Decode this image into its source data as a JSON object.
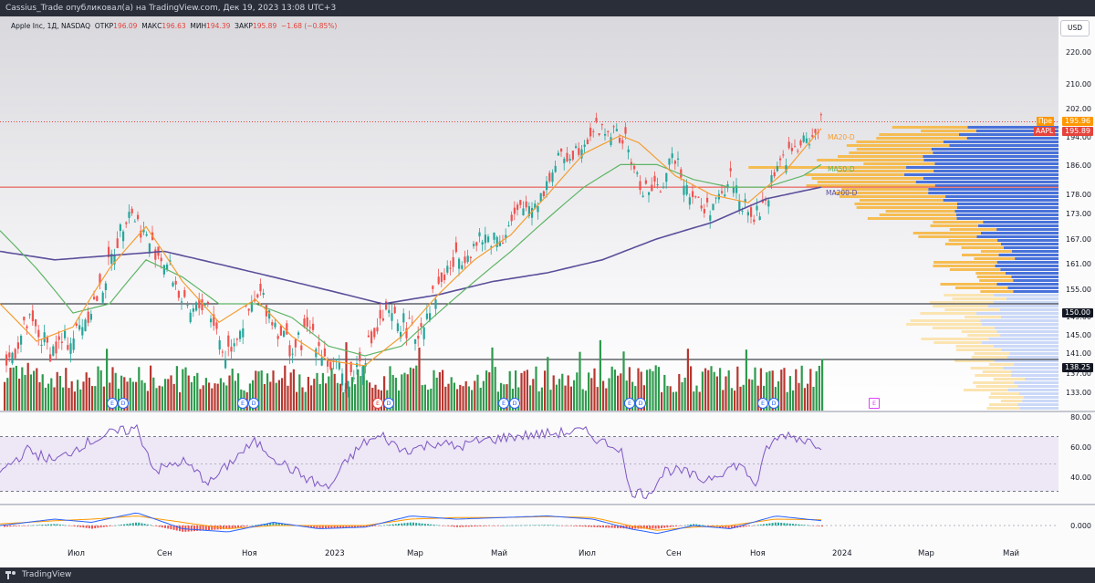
{
  "header": {
    "title": "Cassius_Trade опубликовал(а) на TradingView.com, Дек 19, 2023 13:08 UTC+3"
  },
  "legend": {
    "symbol": "Apple Inc, 1Д, NASDAQ",
    "open_label": "ОТКР",
    "open_value": "196.09",
    "high_label": "МАКС",
    "high_value": "196.63",
    "low_label": "МИН",
    "low_value": "194.39",
    "close_label": "ЗАКР",
    "close_value": "195.89",
    "change": "−1.68 (−0.85%)"
  },
  "currency_button": "USD",
  "price_axis": {
    "main_ticks": [
      "220.00",
      "210.00",
      "202.00",
      "194.00",
      "186.00",
      "178.00",
      "173.00",
      "167.00",
      "161.00",
      "155.00",
      "149.00",
      "145.00",
      "141.00",
      "137.00",
      "133.00"
    ],
    "rsi_ticks": [
      "80.00",
      "60.00",
      "40.00"
    ],
    "macd_ticks": [
      "0.000"
    ]
  },
  "price_tags": {
    "pre_label": "Пре",
    "pre": "195.96",
    "last_label": "AAPL",
    "last": "195.89",
    "level_150": "150.00",
    "level_138": "138.25"
  },
  "ma_labels": {
    "ma20": "MA20-D",
    "ma50": "MA50-D",
    "ma200": "MA200-D"
  },
  "time_axis": [
    "Июл",
    "Сен",
    "Ноя",
    "2023",
    "Мар",
    "Май",
    "Июл",
    "Сен",
    "Ноя",
    "2024",
    "Мар",
    "Май"
  ],
  "earnings_markers": [
    "E",
    "D",
    "E",
    "D",
    "E",
    "D",
    "E",
    "D",
    "E",
    "D",
    "E",
    "D",
    "E"
  ],
  "footer": {
    "brand": "TradingView"
  },
  "colors": {
    "up": "#26a69a",
    "down": "#ef5350",
    "vol_up": "#2e9a4d",
    "vol_down": "#b7372f",
    "ma20": "#f59d31",
    "ma50": "#5fb566",
    "ma200": "#5b4f9a",
    "rsi": "#7e57c2",
    "vp_up": "#f5b94a",
    "vp_down": "#3f6ad8"
  },
  "chart_data": {
    "type": "candlestick",
    "symbol": "AAPL",
    "timeframe": "1D",
    "close_path": [
      [
        0,
        135
      ],
      [
        30,
        146
      ],
      [
        55,
        140
      ],
      [
        80,
        143
      ],
      [
        110,
        153
      ],
      [
        140,
        173
      ],
      [
        160,
        165
      ],
      [
        185,
        158
      ],
      [
        205,
        147
      ],
      [
        225,
        151
      ],
      [
        245,
        139
      ],
      [
        265,
        146
      ],
      [
        285,
        152
      ],
      [
        300,
        146
      ],
      [
        320,
        140
      ],
      [
        340,
        145
      ],
      [
        360,
        137
      ],
      [
        380,
        134
      ],
      [
        400,
        140
      ],
      [
        420,
        147
      ],
      [
        440,
        146
      ],
      [
        455,
        143
      ],
      [
        470,
        150
      ],
      [
        490,
        158
      ],
      [
        510,
        162
      ],
      [
        530,
        165
      ],
      [
        550,
        166
      ],
      [
        570,
        172
      ],
      [
        590,
        175
      ],
      [
        610,
        185
      ],
      [
        630,
        188
      ],
      [
        650,
        194
      ],
      [
        670,
        193
      ],
      [
        685,
        190
      ],
      [
        700,
        178
      ],
      [
        720,
        177
      ],
      [
        740,
        187
      ],
      [
        750,
        179
      ],
      [
        770,
        172
      ],
      [
        790,
        175
      ],
      [
        800,
        181
      ],
      [
        820,
        170
      ],
      [
        835,
        172
      ],
      [
        850,
        184
      ],
      [
        870,
        188
      ],
      [
        890,
        192
      ],
      [
        900,
        195.9
      ]
    ],
    "ma20_path": [
      [
        0,
        150
      ],
      [
        40,
        142
      ],
      [
        80,
        145
      ],
      [
        120,
        158
      ],
      [
        160,
        168
      ],
      [
        200,
        155
      ],
      [
        240,
        146
      ],
      [
        280,
        151
      ],
      [
        320,
        143
      ],
      [
        360,
        138
      ],
      [
        400,
        137
      ],
      [
        440,
        143
      ],
      [
        480,
        152
      ],
      [
        520,
        160
      ],
      [
        560,
        166
      ],
      [
        600,
        176
      ],
      [
        640,
        187
      ],
      [
        680,
        192
      ],
      [
        700,
        190
      ],
      [
        740,
        181
      ],
      [
        780,
        176
      ],
      [
        820,
        174
      ],
      [
        860,
        182
      ],
      [
        900,
        194
      ]
    ],
    "ma50_path": [
      [
        0,
        167
      ],
      [
        40,
        158
      ],
      [
        80,
        148
      ],
      [
        120,
        150
      ],
      [
        160,
        160
      ],
      [
        200,
        156
      ],
      [
        240,
        150
      ],
      [
        280,
        150
      ],
      [
        320,
        147
      ],
      [
        360,
        141
      ],
      [
        400,
        139
      ],
      [
        440,
        141
      ],
      [
        480,
        148
      ],
      [
        520,
        155
      ],
      [
        560,
        162
      ],
      [
        600,
        170
      ],
      [
        640,
        178
      ],
      [
        680,
        184
      ],
      [
        720,
        184
      ],
      [
        760,
        180
      ],
      [
        800,
        178
      ],
      [
        840,
        178
      ],
      [
        880,
        181
      ],
      [
        900,
        184
      ]
    ],
    "ma200_path": [
      [
        0,
        162
      ],
      [
        60,
        160
      ],
      [
        120,
        161
      ],
      [
        180,
        162
      ],
      [
        240,
        159
      ],
      [
        300,
        156
      ],
      [
        360,
        153
      ],
      [
        420,
        150
      ],
      [
        480,
        152
      ],
      [
        540,
        155
      ],
      [
        600,
        157
      ],
      [
        660,
        160
      ],
      [
        720,
        165
      ],
      [
        780,
        169
      ],
      [
        840,
        175
      ],
      [
        900,
        178
      ]
    ],
    "horizontal_levels": [
      178,
      150,
      138.25
    ],
    "rsi_range": [
      0,
      100
    ],
    "rsi_bands": [
      70,
      50,
      30
    ],
    "rsi_path": [
      [
        0,
        44
      ],
      [
        30,
        60
      ],
      [
        60,
        52
      ],
      [
        90,
        64
      ],
      [
        120,
        72
      ],
      [
        150,
        76
      ],
      [
        170,
        45
      ],
      [
        200,
        52
      ],
      [
        230,
        36
      ],
      [
        260,
        56
      ],
      [
        280,
        66
      ],
      [
        310,
        50
      ],
      [
        340,
        38
      ],
      [
        360,
        32
      ],
      [
        380,
        52
      ],
      [
        400,
        66
      ],
      [
        420,
        70
      ],
      [
        440,
        60
      ],
      [
        460,
        62
      ],
      [
        480,
        66
      ],
      [
        500,
        62
      ],
      [
        520,
        66
      ],
      [
        560,
        70
      ],
      [
        600,
        72
      ],
      [
        640,
        74
      ],
      [
        660,
        66
      ],
      [
        680,
        62
      ],
      [
        690,
        30
      ],
      [
        710,
        28
      ],
      [
        730,
        46
      ],
      [
        750,
        44
      ],
      [
        770,
        38
      ],
      [
        790,
        44
      ],
      [
        810,
        50
      ],
      [
        830,
        34
      ],
      [
        840,
        62
      ],
      [
        860,
        72
      ],
      [
        880,
        68
      ],
      [
        900,
        64
      ]
    ],
    "macd_range": [
      -5,
      5
    ],
    "macd_path": [
      [
        0,
        0
      ],
      [
        60,
        2
      ],
      [
        100,
        1
      ],
      [
        150,
        4
      ],
      [
        200,
        -1
      ],
      [
        250,
        -2
      ],
      [
        300,
        1
      ],
      [
        350,
        -1
      ],
      [
        400,
        -0.5
      ],
      [
        450,
        3
      ],
      [
        500,
        2
      ],
      [
        550,
        2.5
      ],
      [
        600,
        3
      ],
      [
        650,
        2
      ],
      [
        690,
        -1
      ],
      [
        720,
        -2.5
      ],
      [
        760,
        0
      ],
      [
        800,
        -1
      ],
      [
        850,
        3
      ],
      [
        900,
        1.5
      ]
    ],
    "signal_path": [
      [
        0,
        0.5
      ],
      [
        60,
        1.5
      ],
      [
        100,
        2
      ],
      [
        150,
        3
      ],
      [
        200,
        1
      ],
      [
        250,
        -1
      ],
      [
        300,
        0
      ],
      [
        350,
        0
      ],
      [
        400,
        0
      ],
      [
        450,
        2
      ],
      [
        500,
        2.5
      ],
      [
        550,
        2.5
      ],
      [
        600,
        2.8
      ],
      [
        650,
        2.5
      ],
      [
        690,
        0
      ],
      [
        720,
        -1.5
      ],
      [
        760,
        -0.5
      ],
      [
        800,
        0
      ],
      [
        850,
        2
      ],
      [
        900,
        1.8
      ]
    ]
  }
}
